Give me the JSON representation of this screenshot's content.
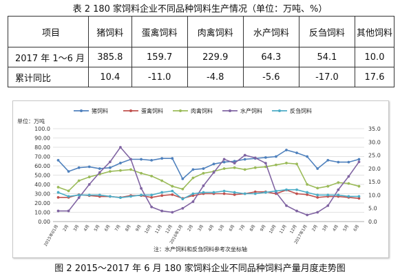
{
  "table_caption": "表 2 180 家饲料企业不同品种饲料生产情况（单位：万吨、%）",
  "table": {
    "headers": [
      "项目",
      "猪饲料",
      "蛋禽饲料",
      "肉禽饲料",
      "水产饲料",
      "反刍饲料",
      "其他饲料"
    ],
    "rows": [
      [
        "2017 年 1～6 月",
        "385.8",
        "159.7",
        "229.9",
        "64.3",
        "54.1",
        "10.0"
      ],
      [
        "累计同比",
        "10.4",
        "-11.0",
        "-4.8",
        "-5.6",
        "-17.0",
        "17.6"
      ]
    ]
  },
  "figure_caption": "图 2 2015～2017 年 6 月 180 家饲料企业不同品种饲料产量月度走势图",
  "chart_data": {
    "type": "line",
    "unit_label": "单位：万吨",
    "note": "注：水产饲料和反刍饲料参考次坐标轴",
    "ylim_left": [
      0,
      100
    ],
    "ylim_right": [
      0,
      35
    ],
    "y_ticks_left": [
      "0.00",
      "10.00",
      "20.00",
      "30.00",
      "40.00",
      "50.00",
      "60.00",
      "70.00",
      "80.00",
      "90.00",
      "100.0"
    ],
    "y_ticks_right": [
      "0.0",
      "5.0",
      "10.0",
      "15.0",
      "20.0",
      "25.0",
      "30.0",
      "35.0"
    ],
    "categories": [
      "2015年01月",
      "2月",
      "3月",
      "4月",
      "5月",
      "6月",
      "7月",
      "8月",
      "9月",
      "10月",
      "11月",
      "12月",
      "2016年1月",
      "2月",
      "3月",
      "4月",
      "5月",
      "6月",
      "7月",
      "8月",
      "9月",
      "10月",
      "11月",
      "12月",
      "2017年1月",
      "2月",
      "3月",
      "4月",
      "5月",
      "6月"
    ],
    "series": [
      {
        "name": "猪饲料",
        "axis": "left",
        "color": "#4f81bd",
        "values": [
          66,
          54,
          58,
          59,
          57,
          58,
          63,
          67,
          67,
          66,
          68,
          68,
          46,
          56,
          57,
          62,
          64,
          65,
          67,
          68,
          69,
          70,
          77,
          74,
          70,
          57,
          66,
          64,
          64,
          67
        ]
      },
      {
        "name": "蛋禽饲料",
        "axis": "left",
        "color": "#c0504d",
        "values": [
          26,
          26,
          29,
          28,
          27,
          27,
          26,
          28,
          28,
          26,
          28,
          29,
          25,
          28,
          30,
          30,
          30,
          29,
          30,
          32,
          32,
          30,
          34,
          30,
          29,
          26,
          27,
          27,
          26,
          25
        ]
      },
      {
        "name": "肉禽饲料",
        "axis": "left",
        "color": "#9bbb59",
        "values": [
          37,
          33,
          44,
          48,
          51,
          54,
          55,
          56,
          52,
          49,
          44,
          38,
          35,
          47,
          52,
          54,
          57,
          58,
          56,
          58,
          59,
          61,
          63,
          62,
          40,
          36,
          38,
          42,
          41,
          38
        ]
      },
      {
        "name": "水产饲料",
        "axis": "right",
        "color": "#8064a2",
        "values": [
          4.0,
          4.0,
          9.0,
          14.0,
          18.5,
          22.5,
          28.0,
          23.5,
          12.5,
          5.5,
          4.0,
          3.5,
          5.0,
          7.5,
          13.5,
          18.5,
          23.5,
          22.0,
          25.0,
          24.0,
          22.0,
          11.0,
          6.0,
          4.0,
          2.5,
          3.5,
          6.0,
          12.0,
          17.0,
          22.5
        ]
      },
      {
        "name": "反刍饲料",
        "axis": "right",
        "color": "#4bacc6",
        "values": [
          11.0,
          9.5,
          10.0,
          10.0,
          10.0,
          9.5,
          9.0,
          9.5,
          10.0,
          10.0,
          11.0,
          11.5,
          8.5,
          10.5,
          11.0,
          11.0,
          11.5,
          11.0,
          10.5,
          10.5,
          11.0,
          11.5,
          12.0,
          12.0,
          11.0,
          10.0,
          10.0,
          10.0,
          9.5,
          9.5
        ]
      }
    ],
    "legend_position": "top"
  }
}
